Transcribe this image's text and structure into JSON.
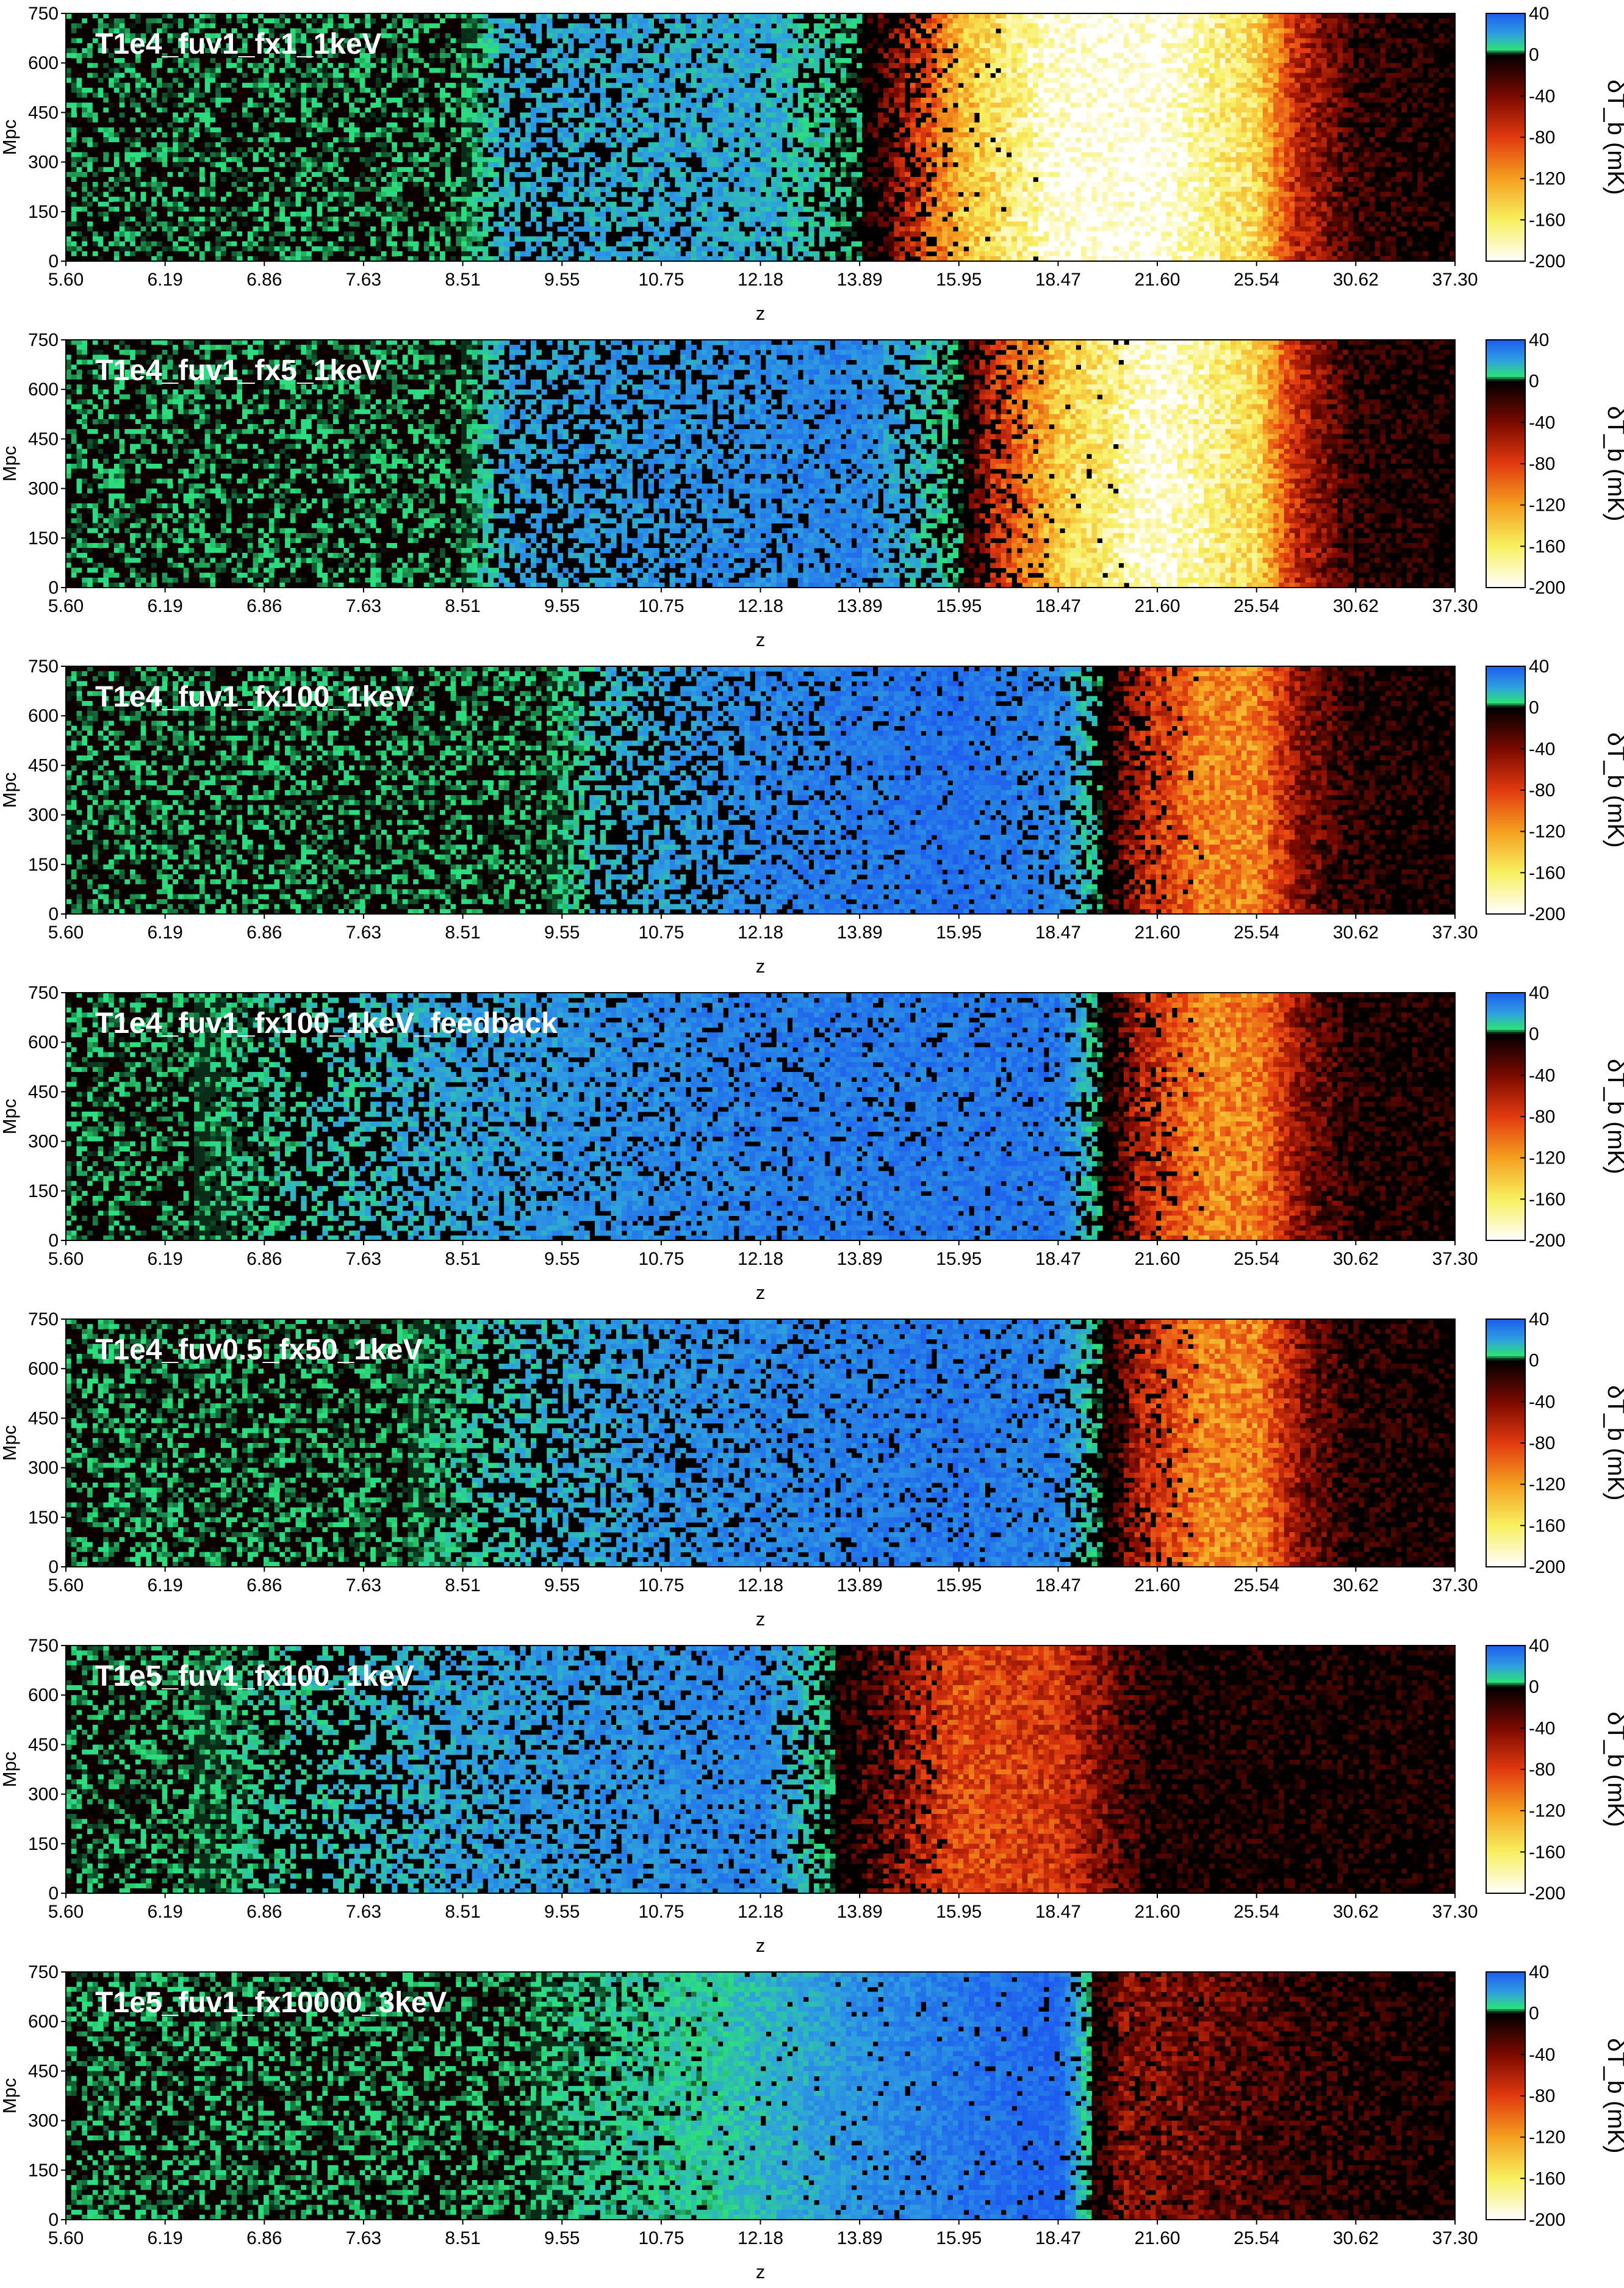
{
  "chart_data": {
    "type": "heatmap",
    "xlabel": "z",
    "ylabel": "Mpc",
    "x_tick_labels": [
      "5.60",
      "6.19",
      "6.86",
      "7.63",
      "8.51",
      "9.55",
      "10.75",
      "12.18",
      "13.89",
      "15.95",
      "18.47",
      "21.60",
      "25.54",
      "30.62",
      "37.30"
    ],
    "y_tick_labels": [
      "0",
      "150",
      "300",
      "450",
      "600",
      "750"
    ],
    "ylim": [
      0,
      750
    ],
    "colorbar": {
      "label": "δT_b (mK)",
      "ticks": [
        "40",
        "0",
        "-40",
        "-80",
        "-120",
        "-160",
        "-200"
      ],
      "range": [
        -200,
        40
      ],
      "colors": {
        "v40": "#1e5cf0",
        "v20": "#2fa0e0",
        "v5": "#2de07a",
        "v0": "#000000",
        "m40": "#7a0a00",
        "m80": "#e23a10",
        "m120": "#f5a020",
        "m160": "#f8f060",
        "m200": "#ffffff"
      }
    },
    "panels": [
      {
        "title": "T1e4_fuv1_fx1_1keV",
        "stops": [
          {
            "z": 5.6,
            "dTb": 0,
            "b": 0
          },
          {
            "z": 8.51,
            "dTb": 0,
            "b": 0
          },
          {
            "z": 9.0,
            "dTb": 18,
            "b": 0.55
          },
          {
            "z": 12.18,
            "dTb": 18,
            "b": 0.15
          },
          {
            "z": 13.89,
            "dTb": 4,
            "b": 0.55
          },
          {
            "z": 15.0,
            "dTb": -70,
            "b": 0.35
          },
          {
            "z": 15.95,
            "dTb": -130,
            "b": 0.05
          },
          {
            "z": 18.47,
            "dTb": -195,
            "b": 0
          },
          {
            "z": 21.6,
            "dTb": -200,
            "b": 0
          },
          {
            "z": 25.54,
            "dTb": -150,
            "b": 0
          },
          {
            "z": 27.5,
            "dTb": -70,
            "b": 0
          },
          {
            "z": 30.62,
            "dTb": -15,
            "b": 0
          },
          {
            "z": 37.3,
            "dTb": 0,
            "b": 0
          }
        ]
      },
      {
        "title": "T1e4_fuv1_fx5_1keV",
        "stops": [
          {
            "z": 5.6,
            "dTb": 0,
            "b": 0
          },
          {
            "z": 8.51,
            "dTb": 0,
            "b": 0
          },
          {
            "z": 9.0,
            "dTb": 20,
            "b": 0.55
          },
          {
            "z": 13.89,
            "dTb": 28,
            "b": 0.15
          },
          {
            "z": 15.95,
            "dTb": 5,
            "b": 0.5
          },
          {
            "z": 16.8,
            "dTb": -70,
            "b": 0.35
          },
          {
            "z": 18.47,
            "dTb": -140,
            "b": 0.05
          },
          {
            "z": 21.6,
            "dTb": -195,
            "b": 0
          },
          {
            "z": 25.54,
            "dTb": -150,
            "b": 0
          },
          {
            "z": 27.5,
            "dTb": -70,
            "b": 0
          },
          {
            "z": 30.62,
            "dTb": -10,
            "b": 0
          },
          {
            "z": 37.3,
            "dTb": 0,
            "b": 0
          }
        ]
      },
      {
        "title": "T1e4_fuv1_fx100_1keV",
        "stops": [
          {
            "z": 5.6,
            "dTb": 0,
            "b": 0
          },
          {
            "z": 9.4,
            "dTb": 0,
            "b": 0
          },
          {
            "z": 10.0,
            "dTb": 15,
            "b": 0.6
          },
          {
            "z": 12.18,
            "dTb": 28,
            "b": 0.25
          },
          {
            "z": 15.95,
            "dTb": 34,
            "b": 0.05
          },
          {
            "z": 18.47,
            "dTb": 28,
            "b": 0.2
          },
          {
            "z": 19.8,
            "dTb": 4,
            "b": 0.55
          },
          {
            "z": 21.0,
            "dTb": -60,
            "b": 0.25
          },
          {
            "z": 23.5,
            "dTb": -110,
            "b": 0
          },
          {
            "z": 25.54,
            "dTb": -110,
            "b": 0
          },
          {
            "z": 28.0,
            "dTb": -40,
            "b": 0
          },
          {
            "z": 30.62,
            "dTb": -8,
            "b": 0
          },
          {
            "z": 37.3,
            "dTb": 0,
            "b": 0
          }
        ]
      },
      {
        "title": "T1e4_fuv1_fx100_1keV_feedback",
        "stops": [
          {
            "z": 5.6,
            "dTb": 0,
            "b": 0
          },
          {
            "z": 6.4,
            "dTb": 0,
            "b": 0
          },
          {
            "z": 7.1,
            "dTb": 10,
            "b": 0.7
          },
          {
            "z": 8.51,
            "dTb": 20,
            "b": 0.3
          },
          {
            "z": 12.18,
            "dTb": 30,
            "b": 0.15
          },
          {
            "z": 18.47,
            "dTb": 32,
            "b": 0.1
          },
          {
            "z": 19.8,
            "dTb": 4,
            "b": 0.55
          },
          {
            "z": 21.0,
            "dTb": -60,
            "b": 0.25
          },
          {
            "z": 23.5,
            "dTb": -110,
            "b": 0
          },
          {
            "z": 25.54,
            "dTb": -110,
            "b": 0
          },
          {
            "z": 28.0,
            "dTb": -40,
            "b": 0
          },
          {
            "z": 30.62,
            "dTb": -8,
            "b": 0
          },
          {
            "z": 37.3,
            "dTb": 0,
            "b": 0
          }
        ]
      },
      {
        "title": "T1e4_fuv0.5_fx50_1keV",
        "stops": [
          {
            "z": 5.6,
            "dTb": 0,
            "b": 0
          },
          {
            "z": 8.0,
            "dTb": 0,
            "b": 0
          },
          {
            "z": 8.8,
            "dTb": 12,
            "b": 0.6
          },
          {
            "z": 10.75,
            "dTb": 24,
            "b": 0.3
          },
          {
            "z": 15.95,
            "dTb": 32,
            "b": 0.1
          },
          {
            "z": 18.47,
            "dTb": 28,
            "b": 0.2
          },
          {
            "z": 19.8,
            "dTb": 4,
            "b": 0.55
          },
          {
            "z": 21.0,
            "dTb": -60,
            "b": 0.25
          },
          {
            "z": 23.5,
            "dTb": -110,
            "b": 0
          },
          {
            "z": 25.54,
            "dTb": -110,
            "b": 0
          },
          {
            "z": 28.0,
            "dTb": -40,
            "b": 0
          },
          {
            "z": 30.62,
            "dTb": -8,
            "b": 0
          },
          {
            "z": 37.3,
            "dTb": 0,
            "b": 0
          }
        ]
      },
      {
        "title": "T1e5_fuv1_fx100_1keV",
        "stops": [
          {
            "z": 5.6,
            "dTb": 0,
            "b": 0
          },
          {
            "z": 6.4,
            "dTb": 0,
            "b": 0
          },
          {
            "z": 7.1,
            "dTb": 10,
            "b": 0.7
          },
          {
            "z": 8.51,
            "dTb": 20,
            "b": 0.3
          },
          {
            "z": 12.18,
            "dTb": 28,
            "b": 0.15
          },
          {
            "z": 13.3,
            "dTb": 6,
            "b": 0.5
          },
          {
            "z": 14.5,
            "dTb": -40,
            "b": 0.35
          },
          {
            "z": 15.95,
            "dTb": -85,
            "b": 0
          },
          {
            "z": 18.47,
            "dTb": -75,
            "b": 0
          },
          {
            "z": 20.5,
            "dTb": -25,
            "b": 0
          },
          {
            "z": 21.6,
            "dTb": -4,
            "b": 0
          },
          {
            "z": 37.3,
            "dTb": 0,
            "b": 0
          }
        ]
      },
      {
        "title": "T1e5_fuv1_fx10000_3keV",
        "stops": [
          {
            "z": 5.6,
            "dTb": 0,
            "b": 0
          },
          {
            "z": 9.2,
            "dTb": 0,
            "b": 0
          },
          {
            "z": 9.8,
            "dTb": 6,
            "b": 0.3
          },
          {
            "z": 11.5,
            "dTb": 10,
            "b": 0.05
          },
          {
            "z": 13.89,
            "dTb": 24,
            "b": 0.05
          },
          {
            "z": 18.47,
            "dTb": 38,
            "b": 0.05
          },
          {
            "z": 19.5,
            "dTb": 5,
            "b": 0.3
          },
          {
            "z": 20.5,
            "dTb": -45,
            "b": 0.2
          },
          {
            "z": 23.5,
            "dTb": -35,
            "b": 0.05
          },
          {
            "z": 27.5,
            "dTb": -15,
            "b": 0
          },
          {
            "z": 37.3,
            "dTb": 0,
            "b": 0
          }
        ]
      }
    ]
  }
}
